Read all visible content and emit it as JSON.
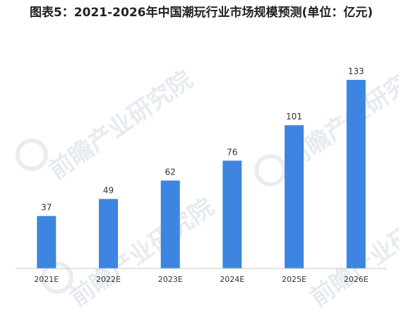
{
  "chart_data": {
    "type": "bar",
    "title": "图表5：2021-2026年中国潮玩行业市场规模预测(单位：亿元)",
    "categories": [
      "2021E",
      "2022E",
      "2023E",
      "2024E",
      "2025E",
      "2026E"
    ],
    "values": [
      37,
      49,
      62,
      76,
      101,
      133
    ],
    "xlabel": "",
    "ylabel": "",
    "ylim": [
      0,
      133
    ],
    "grid": false,
    "legend": "none",
    "bar_color": "#3d85e0",
    "axis_color": "#c9c9c9"
  },
  "watermark": {
    "text": "前瞻产业研究院"
  }
}
